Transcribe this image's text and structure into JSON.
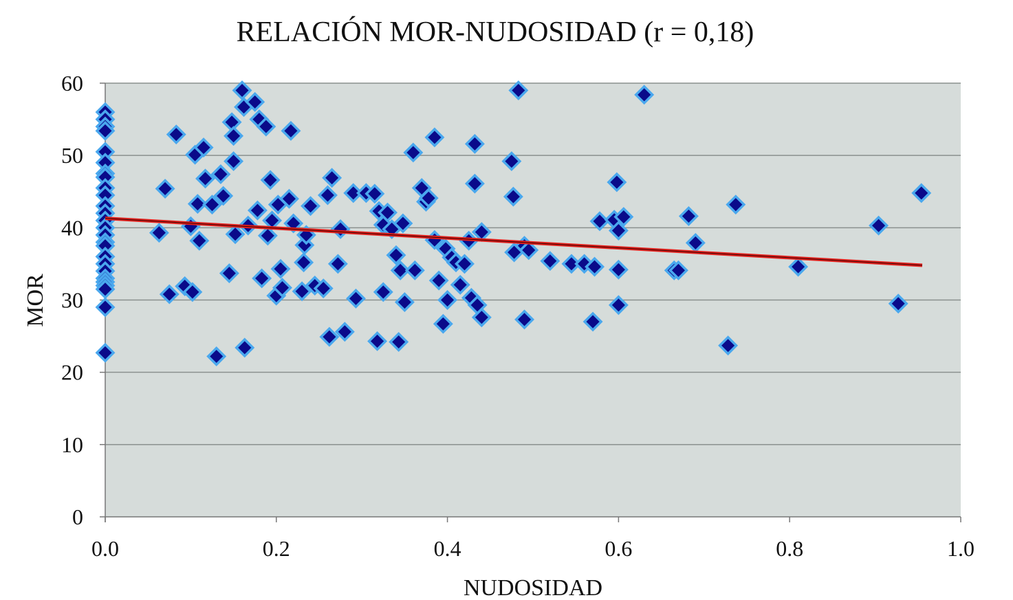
{
  "chart_data": {
    "type": "scatter",
    "title": "RELACIÓN MOR-NUDOSIDAD (r = 0,18)",
    "xlabel": "NUDOSIDAD",
    "ylabel": "MOR",
    "xlim": [
      0,
      1
    ],
    "ylim": [
      0,
      60
    ],
    "xticks": [
      "0.0",
      "0.2",
      "0.4",
      "0.6",
      "0.8",
      "1.0"
    ],
    "xtick_values": [
      0,
      0.2,
      0.4,
      0.6,
      0.8,
      1.0
    ],
    "yticks": [
      "0",
      "10",
      "20",
      "30",
      "40",
      "50",
      "60"
    ],
    "ytick_values": [
      0,
      10,
      20,
      30,
      40,
      50,
      60
    ],
    "grid": "horizontal",
    "legend": "none",
    "colors": {
      "plot_bg": "#d6dcda",
      "marker_fill": "#0a0a8a",
      "marker_edge": "#4aa8ee",
      "trend": "#e0201c",
      "grid": "#8a908e"
    },
    "trendline": {
      "x": [
        0,
        0.955
      ],
      "y": [
        41.3,
        34.8
      ]
    },
    "points": [
      [
        0,
        56
      ],
      [
        0,
        55
      ],
      [
        0,
        54
      ],
      [
        0,
        53.4
      ],
      [
        0,
        50.5
      ],
      [
        0,
        49
      ],
      [
        0,
        47.5
      ],
      [
        0,
        47
      ],
      [
        0,
        45.5
      ],
      [
        0,
        44.5
      ],
      [
        0,
        43
      ],
      [
        0,
        42
      ],
      [
        0,
        41
      ],
      [
        0,
        40
      ],
      [
        0,
        39
      ],
      [
        0,
        38
      ],
      [
        0,
        37.5
      ],
      [
        0,
        36
      ],
      [
        0,
        35
      ],
      [
        0,
        34
      ],
      [
        0,
        33
      ],
      [
        0,
        32.5
      ],
      [
        0,
        32
      ],
      [
        0,
        31.5
      ],
      [
        0,
        29
      ],
      [
        0,
        22.7
      ],
      [
        0.063,
        39.3
      ],
      [
        0.07,
        45.4
      ],
      [
        0.075,
        30.8
      ],
      [
        0.083,
        52.9
      ],
      [
        0.093,
        31.9
      ],
      [
        0.1,
        40.2
      ],
      [
        0.102,
        31.1
      ],
      [
        0.105,
        50.1
      ],
      [
        0.108,
        43.3
      ],
      [
        0.11,
        38.2
      ],
      [
        0.115,
        51.1
      ],
      [
        0.117,
        46.8
      ],
      [
        0.125,
        43.2
      ],
      [
        0.13,
        22.2
      ],
      [
        0.135,
        47.4
      ],
      [
        0.138,
        44.4
      ],
      [
        0.145,
        33.7
      ],
      [
        0.148,
        54.6
      ],
      [
        0.15,
        52.7
      ],
      [
        0.15,
        49.2
      ],
      [
        0.152,
        39.1
      ],
      [
        0.16,
        59.0
      ],
      [
        0.162,
        56.7
      ],
      [
        0.163,
        23.4
      ],
      [
        0.167,
        40.3
      ],
      [
        0.175,
        57.4
      ],
      [
        0.178,
        42.4
      ],
      [
        0.18,
        55.0
      ],
      [
        0.183,
        33.0
      ],
      [
        0.188,
        54.0
      ],
      [
        0.19,
        38.9
      ],
      [
        0.193,
        46.6
      ],
      [
        0.195,
        41.0
      ],
      [
        0.2,
        30.6
      ],
      [
        0.202,
        43.2
      ],
      [
        0.205,
        34.3
      ],
      [
        0.207,
        31.7
      ],
      [
        0.215,
        44.0
      ],
      [
        0.217,
        53.4
      ],
      [
        0.22,
        40.6
      ],
      [
        0.23,
        31.2
      ],
      [
        0.232,
        35.2
      ],
      [
        0.233,
        37.6
      ],
      [
        0.235,
        39.0
      ],
      [
        0.24,
        43.0
      ],
      [
        0.245,
        32.0
      ],
      [
        0.255,
        31.6
      ],
      [
        0.26,
        44.5
      ],
      [
        0.262,
        24.9
      ],
      [
        0.265,
        46.9
      ],
      [
        0.272,
        35.0
      ],
      [
        0.275,
        39.8
      ],
      [
        0.28,
        25.6
      ],
      [
        0.29,
        44.8
      ],
      [
        0.293,
        30.2
      ],
      [
        0.305,
        44.8
      ],
      [
        0.315,
        44.7
      ],
      [
        0.318,
        24.3
      ],
      [
        0.32,
        42.3
      ],
      [
        0.325,
        31.1
      ],
      [
        0.325,
        40.4
      ],
      [
        0.33,
        42.1
      ],
      [
        0.335,
        39.8
      ],
      [
        0.34,
        36.2
      ],
      [
        0.343,
        24.2
      ],
      [
        0.345,
        34.1
      ],
      [
        0.348,
        40.6
      ],
      [
        0.35,
        29.7
      ],
      [
        0.36,
        50.4
      ],
      [
        0.362,
        34.1
      ],
      [
        0.37,
        45.5
      ],
      [
        0.375,
        43.6
      ],
      [
        0.378,
        44.1
      ],
      [
        0.385,
        52.5
      ],
      [
        0.385,
        38.3
      ],
      [
        0.39,
        32.7
      ],
      [
        0.395,
        26.7
      ],
      [
        0.398,
        37.1
      ],
      [
        0.4,
        30.0
      ],
      [
        0.405,
        35.9
      ],
      [
        0.41,
        35.2
      ],
      [
        0.415,
        32.1
      ],
      [
        0.42,
        35.0
      ],
      [
        0.425,
        38.2
      ],
      [
        0.428,
        30.3
      ],
      [
        0.432,
        51.6
      ],
      [
        0.432,
        46.1
      ],
      [
        0.435,
        29.3
      ],
      [
        0.44,
        27.6
      ],
      [
        0.44,
        39.4
      ],
      [
        0.475,
        49.2
      ],
      [
        0.477,
        44.3
      ],
      [
        0.478,
        36.6
      ],
      [
        0.483,
        59.0
      ],
      [
        0.49,
        27.3
      ],
      [
        0.49,
        37.5
      ],
      [
        0.495,
        36.9
      ],
      [
        0.52,
        35.4
      ],
      [
        0.545,
        35.0
      ],
      [
        0.56,
        35.0
      ],
      [
        0.57,
        27.0
      ],
      [
        0.572,
        34.6
      ],
      [
        0.578,
        40.9
      ],
      [
        0.595,
        41.1
      ],
      [
        0.598,
        46.3
      ],
      [
        0.6,
        39.6
      ],
      [
        0.6,
        34.2
      ],
      [
        0.6,
        29.3
      ],
      [
        0.606,
        41.5
      ],
      [
        0.63,
        58.4
      ],
      [
        0.665,
        34.1
      ],
      [
        0.67,
        34.1
      ],
      [
        0.682,
        41.6
      ],
      [
        0.69,
        37.9
      ],
      [
        0.728,
        23.7
      ],
      [
        0.737,
        43.2
      ],
      [
        0.81,
        34.6
      ],
      [
        0.904,
        40.3
      ],
      [
        0.927,
        29.5
      ],
      [
        0.954,
        44.8
      ]
    ]
  }
}
